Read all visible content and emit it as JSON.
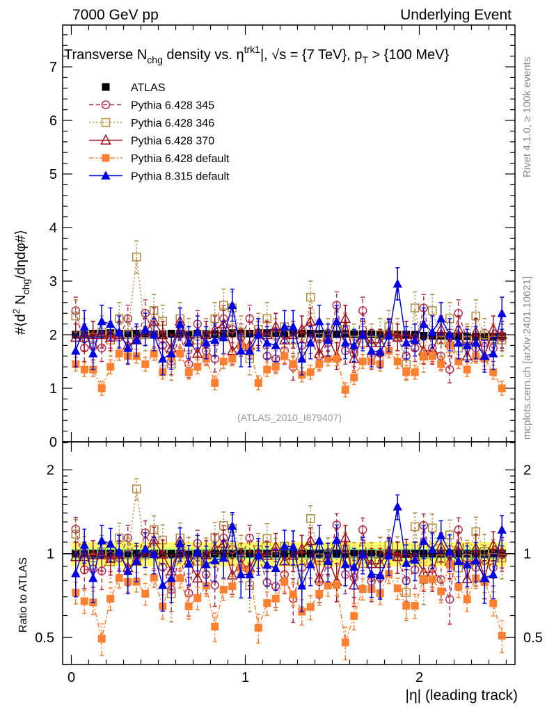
{
  "header": {
    "left": "7000 GeV pp",
    "right": "Underlying Event"
  },
  "side_texts": {
    "rivet": "Rivet 4.1.0, ≥ 100k events",
    "mcplots": "mcplots.cern.ch [arXiv:2401.10621]"
  },
  "chart_data": {
    "type": "scatter",
    "title_parts": [
      "Transverse N",
      "chg",
      " density vs. η",
      "trk1",
      "|, √s = {7 TeV}, p",
      "T",
      " > {100 MeV}"
    ],
    "analysis_id": "(ATLAS_2010_I879407)",
    "ylabel": "#⟨d² N_chg/dηdφ#⟩",
    "ylabel_parts": [
      "#⟨d",
      "2",
      " N",
      "chg",
      "/dηdφ#⟩"
    ],
    "ratio_ylabel": "Ratio to ATLAS",
    "xlabel": "|η| (leading track)",
    "xlim": [
      -0.05,
      2.55
    ],
    "ylim": [
      0,
      7.78
    ],
    "ratio_ylim": [
      0.4,
      2.52
    ],
    "ratio_scale": "log",
    "x_ticks": [
      "0",
      "1",
      "2"
    ],
    "y_ticks": [
      "0",
      "1",
      "2",
      "3",
      "4",
      "5",
      "6",
      "7"
    ],
    "ratio_ticks": [
      "0.5",
      "1",
      "2"
    ],
    "legend_position": "top-left",
    "ratio_band": {
      "inner": 0.04,
      "outer": 0.1,
      "inner_color": "#80ff80",
      "outer_color": "#ffff66"
    },
    "x": [
      0.025,
      0.075,
      0.125,
      0.175,
      0.225,
      0.275,
      0.325,
      0.375,
      0.425,
      0.475,
      0.525,
      0.575,
      0.625,
      0.675,
      0.725,
      0.775,
      0.825,
      0.875,
      0.925,
      0.975,
      1.025,
      1.075,
      1.125,
      1.175,
      1.225,
      1.275,
      1.325,
      1.375,
      1.425,
      1.475,
      1.525,
      1.575,
      1.625,
      1.675,
      1.725,
      1.775,
      1.825,
      1.875,
      1.925,
      1.975,
      2.025,
      2.075,
      2.125,
      2.175,
      2.225,
      2.275,
      2.325,
      2.375,
      2.425,
      2.475
    ],
    "series": [
      {
        "name": "ATLAS",
        "color": "#000000",
        "marker": "square-filled",
        "line": "none",
        "err": 0.02,
        "values": [
          2.0,
          2.0,
          2.02,
          2.02,
          2.03,
          2.02,
          2.02,
          2.02,
          2.02,
          2.01,
          2.01,
          2.02,
          2.02,
          2.01,
          2.02,
          2.02,
          2.01,
          2.02,
          2.03,
          2.02,
          2.02,
          2.03,
          2.03,
          2.03,
          2.02,
          2.03,
          2.02,
          2.02,
          2.02,
          2.02,
          2.01,
          2.02,
          2.01,
          2.01,
          2.01,
          2.01,
          2.01,
          2.0,
          2.0,
          2.0,
          1.98,
          1.98,
          1.98,
          1.97,
          1.97,
          1.97,
          1.96,
          1.96,
          1.96,
          1.97
        ]
      },
      {
        "name": "Pythia 6.428 345",
        "color": "#b03050",
        "marker": "circle-open",
        "line": "dashed",
        "err": 0.25,
        "values": [
          2.45,
          1.75,
          1.78,
          1.75,
          2.0,
          1.95,
          2.3,
          1.9,
          2.4,
          2.0,
          1.8,
          1.5,
          2.0,
          1.45,
          2.2,
          1.7,
          1.55,
          2.3,
          2.1,
          1.95,
          2.3,
          2.0,
          1.6,
          1.55,
          1.7,
          1.4,
          1.8,
          1.9,
          1.6,
          1.85,
          2.55,
          1.7,
          1.65,
          2.45,
          1.6,
          1.65,
          2.0,
          1.95,
          1.6,
          1.75,
          2.5,
          1.75,
          1.6,
          1.35,
          2.4,
          1.9,
          1.75,
          1.85,
          1.75,
          1.95
        ]
      },
      {
        "name": "Pythia 6.428 346",
        "color": "#b08a40",
        "marker": "square-open",
        "line": "dotted",
        "err": 0.3,
        "values": [
          2.35,
          2.0,
          1.95,
          2.05,
          1.9,
          2.3,
          2.0,
          3.45,
          2.0,
          2.45,
          2.25,
          1.45,
          2.3,
          2.0,
          1.9,
          2.0,
          2.3,
          2.55,
          2.5,
          2.05,
          1.55,
          2.1,
          2.3,
          2.0,
          2.15,
          1.9,
          1.6,
          2.7,
          1.95,
          2.0,
          2.15,
          2.1,
          1.9,
          1.85,
          1.9,
          2.0,
          2.15,
          2.0,
          1.45,
          2.5,
          1.6,
          2.45,
          1.9,
          2.3,
          1.75,
          1.9,
          2.35,
          2.0,
          1.9,
          1.9
        ]
      },
      {
        "name": "Pythia 6.428 370",
        "color": "#a01020",
        "marker": "triangle-open",
        "line": "solid",
        "err": 0.25,
        "values": [
          1.95,
          1.95,
          2.0,
          2.0,
          1.95,
          2.0,
          1.8,
          1.9,
          2.05,
          2.25,
          2.0,
          1.75,
          2.25,
          1.9,
          1.65,
          2.0,
          2.1,
          2.2,
          1.7,
          1.85,
          1.8,
          2.05,
          2.0,
          2.15,
          1.9,
          2.0,
          2.1,
          2.25,
          1.65,
          1.95,
          1.6,
          2.3,
          1.55,
          2.0,
          1.85,
          1.85,
          2.05,
          1.95,
          2.0,
          1.95,
          1.7,
          1.7,
          2.1,
          1.85,
          2.1,
          1.6,
          2.05,
          1.6,
          2.1,
          2.0
        ]
      },
      {
        "name": "Pythia 6.428 default",
        "color": "#ff8030",
        "marker": "square-filled",
        "line": "dashdot",
        "err": 0.13,
        "values": [
          1.45,
          1.35,
          1.35,
          1.0,
          1.4,
          1.65,
          1.6,
          1.6,
          1.45,
          1.65,
          1.3,
          1.6,
          1.65,
          1.3,
          1.4,
          1.55,
          1.1,
          1.5,
          1.55,
          1.8,
          1.75,
          1.1,
          1.35,
          1.4,
          1.6,
          1.45,
          1.25,
          1.3,
          1.45,
          1.55,
          1.55,
          0.97,
          1.2,
          1.5,
          1.5,
          1.45,
          1.7,
          1.5,
          1.3,
          1.3,
          1.6,
          1.6,
          1.45,
          1.8,
          1.5,
          1.35,
          1.6,
          1.55,
          1.3,
          1.0
        ]
      },
      {
        "name": "Pythia 8.315 default",
        "color": "#0000e0",
        "marker": "triangle-filled",
        "line": "solid",
        "err": 0.3,
        "values": [
          1.7,
          2.15,
          1.65,
          2.25,
          2.2,
          2.05,
          1.75,
          1.9,
          2.1,
          2.0,
          1.55,
          1.65,
          2.2,
          1.85,
          2.05,
          1.85,
          1.9,
          1.95,
          2.55,
          1.7,
          1.7,
          2.0,
          1.85,
          1.8,
          2.15,
          2.15,
          1.55,
          1.85,
          2.25,
          1.9,
          2.25,
          1.85,
          1.8,
          2.0,
          1.7,
          1.68,
          1.98,
          2.95,
          1.85,
          1.9,
          2.2,
          2.05,
          2.3,
          2.0,
          1.85,
          1.8,
          1.85,
          1.6,
          1.65,
          2.4
        ]
      }
    ]
  }
}
